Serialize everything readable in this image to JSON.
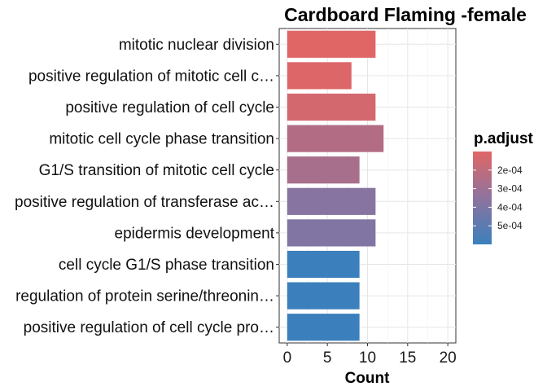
{
  "chart_data": {
    "type": "bar",
    "orientation": "horizontal",
    "title": "Cardboard Flaming -female",
    "xlabel": "Count",
    "ylabel": "",
    "xlim": [
      -1,
      21
    ],
    "xticks": [
      0,
      5,
      10,
      15,
      20
    ],
    "grid": true,
    "categories": [
      "mitotic nuclear division",
      "positive regulation of mitotic cell c…",
      "positive regulation of cell cycle",
      "mitotic cell cycle phase transition",
      "G1/S transition of mitotic cell cycle",
      "positive regulation of transferase ac…",
      "epidermis development",
      "cell cycle G1/S phase transition",
      "regulation of protein serine/threonin…",
      "positive regulation of cell cycle pro…"
    ],
    "values": [
      11,
      8,
      11,
      12,
      9,
      11,
      11,
      9,
      9,
      9
    ],
    "p_adjust": [
      0.0001,
      0.00011,
      0.00014,
      0.00024,
      0.00027,
      0.00037,
      0.00039,
      0.0006,
      0.0006,
      0.0006
    ],
    "legend": {
      "title": "p.adjust",
      "placement": "right",
      "ticks": [
        {
          "value": 0.0002,
          "label": "2e-04"
        },
        {
          "value": 0.0003,
          "label": "3e-04"
        },
        {
          "value": 0.0004,
          "label": "4e-04"
        },
        {
          "value": 0.0005,
          "label": "5e-04"
        }
      ],
      "range": [
        0.0001,
        0.0006
      ],
      "color_low": "#E06666",
      "color_high": "#3B80BC"
    }
  }
}
